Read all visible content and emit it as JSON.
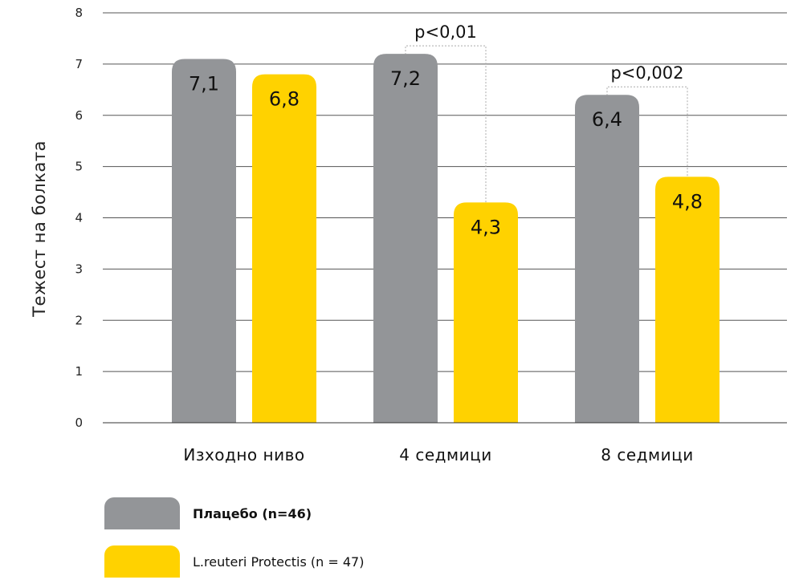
{
  "chart_data": {
    "type": "bar",
    "title": "",
    "xlabel": "",
    "ylabel": "Тежест на болката",
    "ylim": [
      0,
      8
    ],
    "yticks": [
      0,
      1,
      2,
      3,
      4,
      5,
      6,
      7,
      8
    ],
    "grid": true,
    "categories": [
      "Изходно ниво",
      "4 седмици",
      "8 седмици"
    ],
    "series": [
      {
        "name": "Плацебо (n=46)",
        "color": "#939598",
        "values": [
          7.1,
          7.2,
          6.4
        ],
        "labels": [
          "7,1",
          "7,2",
          "6,4"
        ]
      },
      {
        "name": "L.reuteri Protectis (n = 47)",
        "color": "#FFD200",
        "values": [
          6.8,
          4.3,
          4.8
        ],
        "labels": [
          "6,8",
          "4,3",
          "4,8"
        ]
      }
    ],
    "annotations": [
      {
        "category_index": 1,
        "text": "p<0,01"
      },
      {
        "category_index": 2,
        "text": "p<0,002"
      }
    ],
    "legend": "bottom-left"
  }
}
